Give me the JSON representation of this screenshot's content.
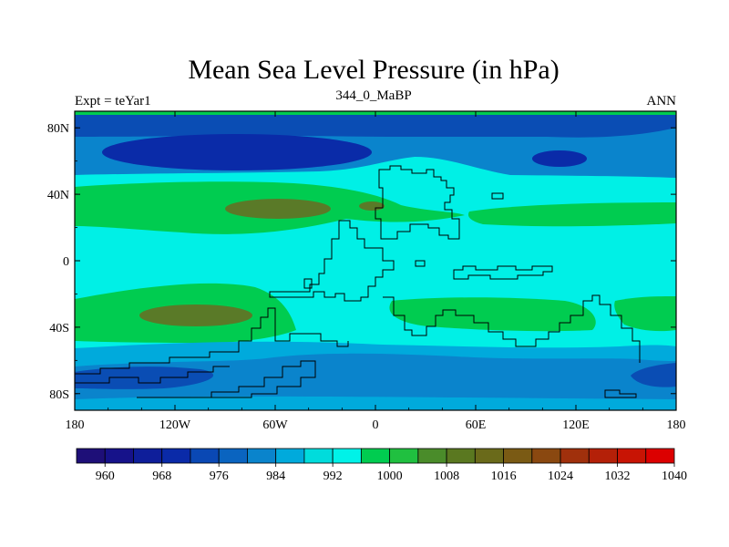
{
  "chart_data": {
    "type": "contour-map",
    "title": "Mean Sea Level Pressure (in hPa)",
    "left_string": "Expt = teYar1",
    "center_string": "344_0_MaBP",
    "right_string": "ANN",
    "x_ticks": [
      "180",
      "120W",
      "60W",
      "0",
      "60E",
      "120E",
      "180"
    ],
    "x_tick_values": [
      -180,
      -120,
      -60,
      0,
      60,
      120,
      180
    ],
    "y_ticks": [
      "80N",
      "40N",
      "0",
      "40S",
      "80S"
    ],
    "y_tick_values": [
      80,
      40,
      0,
      -40,
      -80
    ],
    "xlim": [
      -180,
      180
    ],
    "ylim": [
      -90,
      90
    ],
    "colorbar": {
      "labels": [
        "960",
        "968",
        "976",
        "984",
        "992",
        "1000",
        "1008",
        "1016",
        "1024",
        "1032",
        "1040"
      ],
      "colors": [
        "#1e0f78",
        "#16128a",
        "#0e1e9a",
        "#0a2aa8",
        "#0a48b4",
        "#0a64c0",
        "#0a84cc",
        "#00aadc",
        "#00dcdc",
        "#00f2e8",
        "#00cc50",
        "#20c040",
        "#4a8c2a",
        "#5a7820",
        "#6a6a1a",
        "#7a5a14",
        "#8a4810",
        "#a0300c",
        "#b42008",
        "#c81404",
        "#dc0000"
      ]
    }
  }
}
